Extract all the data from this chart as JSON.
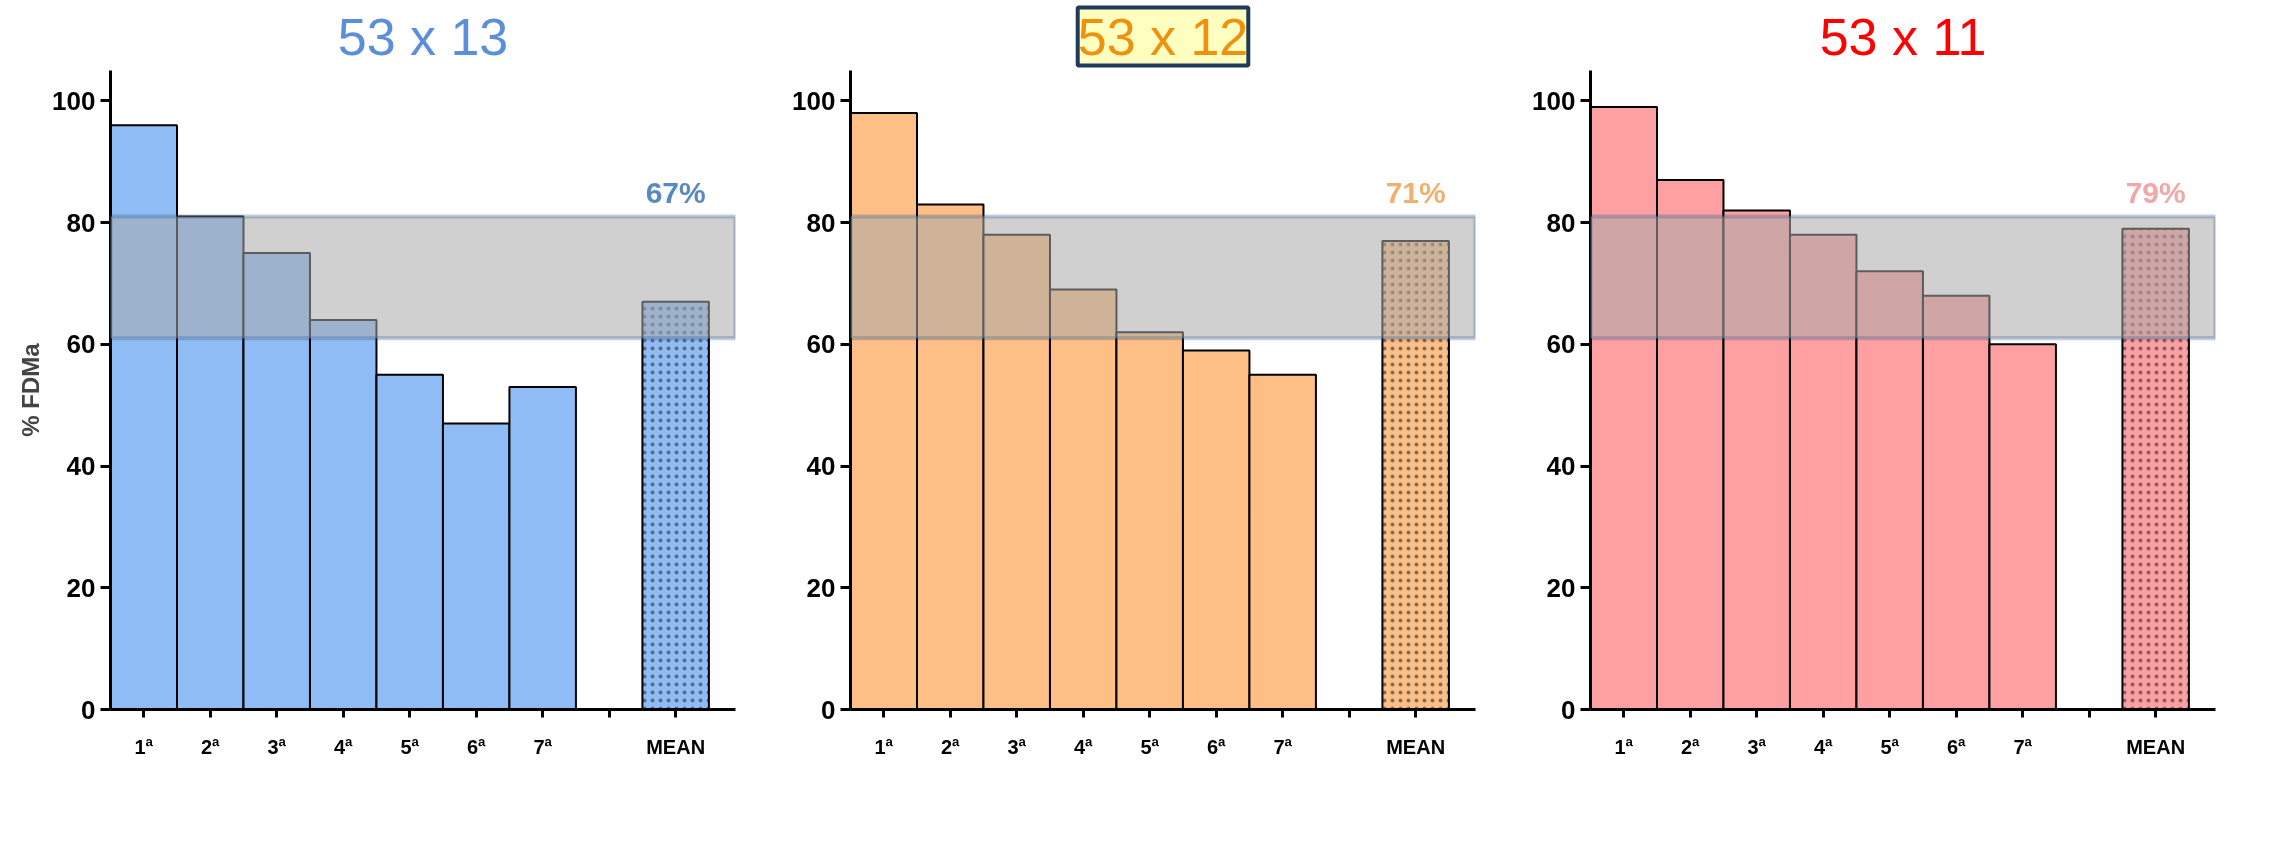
{
  "chart_data": [
    {
      "type": "bar",
      "title": "53 x 13",
      "ylabel": "% FDMa",
      "categories": [
        "1ª",
        "2ª",
        "3ª",
        "4ª",
        "5ª",
        "6ª",
        "7ª",
        null,
        "MEAN"
      ],
      "values": [
        96,
        81,
        75,
        64,
        55,
        47,
        53,
        null,
        67
      ],
      "color": "#8fbcf5",
      "ylim": [
        0,
        105
      ],
      "yticks": [
        0,
        20,
        40,
        60,
        80,
        100
      ],
      "grid": false,
      "bands": [
        {
          "axis": "y",
          "from": 61,
          "to": 81,
          "color": "#a9a9a9"
        }
      ],
      "annotations": [
        "67%"
      ]
    },
    {
      "type": "bar",
      "title": "53 x 12",
      "categories": [
        "1ª",
        "2ª",
        "3ª",
        "4ª",
        "5ª",
        "6ª",
        "7ª",
        null,
        "MEAN"
      ],
      "values": [
        98,
        83,
        78,
        69,
        62,
        59,
        55,
        null,
        77
      ],
      "color": "#fdbf85",
      "ylim": [
        0,
        105
      ],
      "yticks": [
        0,
        20,
        40,
        60,
        80,
        100
      ],
      "grid": false,
      "bands": [
        {
          "axis": "y",
          "from": 61,
          "to": 81,
          "color": "#a9a9a9"
        }
      ],
      "annotations": [
        "71%"
      ]
    },
    {
      "type": "bar",
      "title": "53 x 11",
      "categories": [
        "1ª",
        "2ª",
        "3ª",
        "4ª",
        "5ª",
        "6ª",
        "7ª",
        null,
        "MEAN"
      ],
      "values": [
        99,
        87,
        82,
        78,
        72,
        68,
        60,
        null,
        79
      ],
      "color": "#fea0a1",
      "ylim": [
        0,
        105
      ],
      "yticks": [
        0,
        20,
        40,
        60,
        80,
        100
      ],
      "grid": false,
      "bands": [
        {
          "axis": "y",
          "from": 61,
          "to": 81,
          "color": "#a9a9a9"
        }
      ],
      "annotations": [
        "79%"
      ]
    }
  ]
}
